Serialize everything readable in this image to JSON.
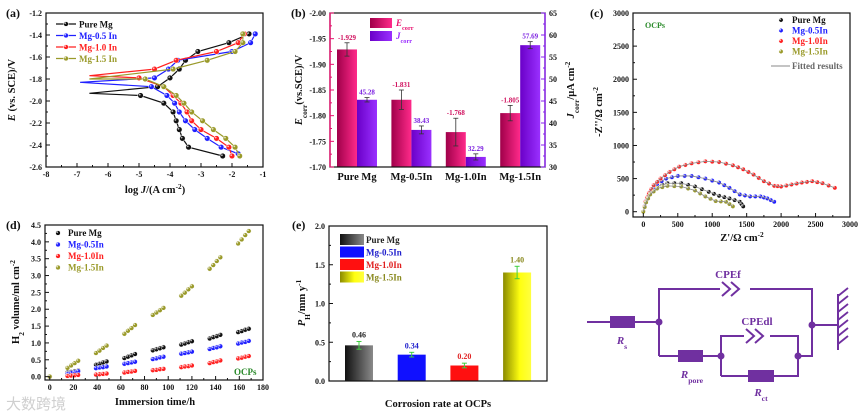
{
  "watermark": "大数跨境",
  "chart_data": [
    {
      "panel": "a",
      "label": "(a)",
      "type": "line",
      "xlabel": {
        "pre": "log ",
        "ital": "J",
        "post": "/(A cm",
        "sup": "-2",
        "end": ")"
      },
      "ylabel": {
        "ital": "E",
        "post": " (vs. SCE)/V"
      },
      "xlim": [
        -8,
        -1
      ],
      "ylim": [
        -2.6,
        -1.2
      ],
      "xticks": [
        "-8",
        "-7",
        "-6",
        "-5",
        "-4",
        "-3",
        "-2",
        "-1"
      ],
      "yticks": [
        "-1.2",
        "-1.4",
        "-1.6",
        "-1.8",
        "-2.0",
        "-2.2",
        "-2.4",
        "-2.6"
      ],
      "legend": "top-left",
      "series": [
        {
          "name": "Pure Mg",
          "color": "#111111",
          "points": [
            [
              -2.3,
              -2.5
            ],
            [
              -3.4,
              -2.42
            ],
            [
              -3.6,
              -2.34
            ],
            [
              -3.7,
              -2.26
            ],
            [
              -3.8,
              -2.18
            ],
            [
              -3.9,
              -2.1
            ],
            [
              -4.2,
              -2.02
            ],
            [
              -4.95,
              -1.95
            ],
            [
              -6.6,
              -1.93
            ],
            [
              -4.4,
              -1.87
            ],
            [
              -4.0,
              -1.79
            ],
            [
              -3.7,
              -1.71
            ],
            [
              -3.5,
              -1.63
            ],
            [
              -3.1,
              -1.55
            ],
            [
              -2.1,
              -1.47
            ],
            [
              -1.45,
              -1.39
            ]
          ]
        },
        {
          "name": "Mg-0.5 In",
          "color": "#2020ff",
          "points": [
            [
              -1.8,
              -2.48
            ],
            [
              -2.35,
              -2.42
            ],
            [
              -2.8,
              -2.34
            ],
            [
              -3.2,
              -2.26
            ],
            [
              -3.5,
              -2.18
            ],
            [
              -3.7,
              -2.1
            ],
            [
              -3.85,
              -2.02
            ],
            [
              -4.1,
              -1.95
            ],
            [
              -4.6,
              -1.87
            ],
            [
              -6.9,
              -1.83
            ],
            [
              -4.5,
              -1.79
            ],
            [
              -4.05,
              -1.71
            ],
            [
              -3.75,
              -1.63
            ],
            [
              -2.0,
              -1.55
            ],
            [
              -1.4,
              -1.47
            ],
            [
              -1.25,
              -1.39
            ]
          ]
        },
        {
          "name": "Mg-1.0 In",
          "color": "#ff2020",
          "points": [
            [
              -2.0,
              -2.5
            ],
            [
              -2.1,
              -2.42
            ],
            [
              -2.5,
              -2.34
            ],
            [
              -3.0,
              -2.26
            ],
            [
              -3.3,
              -2.18
            ],
            [
              -3.45,
              -2.1
            ],
            [
              -3.65,
              -2.02
            ],
            [
              -3.9,
              -1.95
            ],
            [
              -4.2,
              -1.87
            ],
            [
              -5.0,
              -1.79
            ],
            [
              -6.6,
              -1.77
            ],
            [
              -4.5,
              -1.71
            ],
            [
              -3.8,
              -1.63
            ],
            [
              -2.5,
              -1.55
            ],
            [
              -1.8,
              -1.47
            ],
            [
              -1.6,
              -1.39
            ]
          ]
        },
        {
          "name": "Mg-1.5 In",
          "color": "#9a9a2a",
          "points": [
            [
              -1.75,
              -2.5
            ],
            [
              -1.9,
              -2.42
            ],
            [
              -2.2,
              -2.34
            ],
            [
              -2.6,
              -2.26
            ],
            [
              -2.95,
              -2.18
            ],
            [
              -3.3,
              -2.1
            ],
            [
              -3.55,
              -2.02
            ],
            [
              -3.8,
              -1.95
            ],
            [
              -4.2,
              -1.87
            ],
            [
              -4.8,
              -1.8
            ],
            [
              -6.6,
              -1.8
            ],
            [
              -3.9,
              -1.71
            ],
            [
              -2.8,
              -1.63
            ],
            [
              -1.9,
              -1.55
            ],
            [
              -1.65,
              -1.47
            ],
            [
              -1.65,
              -1.39
            ]
          ]
        }
      ]
    },
    {
      "panel": "b",
      "label": "(b)",
      "type": "bar",
      "categories": [
        "Pure Mg",
        "Mg-0.5In",
        "Mg-1.0In",
        "Mg-1.5In"
      ],
      "ylabel_left": {
        "ital": "E",
        "sub": "corr",
        "post": "(vs.SCE)/V"
      },
      "ylabel_right": {
        "ital": "J",
        "sub": "corr",
        "post": "/μA cm",
        "sup": "-2"
      },
      "ylim_left": [
        -1.7,
        -2.0
      ],
      "ylim_right": [
        30,
        65
      ],
      "yticks_left": [
        "-2.00",
        "-1.95",
        "-1.90",
        "-1.85",
        "-1.80",
        "-1.75",
        "-1.70"
      ],
      "yticks_right": [
        "30",
        "35",
        "40",
        "45",
        "50",
        "55",
        "60",
        "65"
      ],
      "legend": "top-center",
      "series": [
        {
          "name": "E",
          "sub": "corr",
          "axis": "left",
          "color": "#e8106e",
          "color_dark": "#a0004a",
          "values": [
            -1.929,
            -1.831,
            -1.768,
            -1.805
          ],
          "errors": [
            0.013,
            0.019,
            0.027,
            0.015
          ],
          "labels": [
            "-1.929",
            "-1.831",
            "-1.768",
            "-1.805"
          ]
        },
        {
          "name": "J",
          "sub": "corr",
          "axis": "right",
          "color": "#9a2cff",
          "color_dark": "#6a00c8",
          "values": [
            45.28,
            38.43,
            32.29,
            57.69
          ],
          "errors": [
            0.5,
            0.9,
            0.7,
            0.8
          ],
          "labels": [
            "45.28",
            "38.43",
            "32.29",
            "57.69"
          ]
        }
      ]
    },
    {
      "panel": "c",
      "label": "(c)",
      "type": "scatter",
      "annotation": "OCPs",
      "xlabel": {
        "pre": "Z'/Ω cm",
        "sup": "-2"
      },
      "ylabel": {
        "pre": "-Z''/Ω cm",
        "sup": "-2"
      },
      "xlim": [
        -150,
        3000
      ],
      "ylim": [
        -80,
        3000
      ],
      "xticks": [
        "0",
        "500",
        "1000",
        "1500",
        "2000",
        "2500",
        "3000"
      ],
      "yticks": [
        "0",
        "500",
        "1000",
        "1500",
        "2000",
        "2500",
        "3000"
      ],
      "legend": "top-right",
      "fit_label": "Fitted results",
      "fit_color": "#888888",
      "series": [
        {
          "name": "Pure Mg",
          "color": "#111111",
          "points": [
            [
              0,
              0
            ],
            [
              40,
              150
            ],
            [
              100,
              280
            ],
            [
              200,
              380
            ],
            [
              350,
              430
            ],
            [
              550,
              430
            ],
            [
              750,
              380
            ],
            [
              950,
              300
            ],
            [
              1100,
              240
            ],
            [
              1250,
              200
            ],
            [
              1400,
              150
            ],
            [
              1450,
              80
            ]
          ]
        },
        {
          "name": "Mg-0.5In",
          "color": "#2020ff",
          "points": [
            [
              0,
              0
            ],
            [
              40,
              170
            ],
            [
              100,
              300
            ],
            [
              200,
              420
            ],
            [
              330,
              500
            ],
            [
              500,
              540
            ],
            [
              700,
              540
            ],
            [
              900,
              500
            ],
            [
              1100,
              440
            ],
            [
              1250,
              360
            ],
            [
              1400,
              260
            ],
            [
              1550,
              230
            ],
            [
              1700,
              230
            ],
            [
              1800,
              200
            ],
            [
              1900,
              150
            ]
          ]
        },
        {
          "name": "Mg-1.0In",
          "color": "#ff2020",
          "points": [
            [
              0,
              0
            ],
            [
              30,
              150
            ],
            [
              80,
              280
            ],
            [
              150,
              400
            ],
            [
              250,
              500
            ],
            [
              380,
              600
            ],
            [
              520,
              680
            ],
            [
              700,
              730
            ],
            [
              900,
              760
            ],
            [
              1100,
              750
            ],
            [
              1300,
              700
            ],
            [
              1450,
              640
            ],
            [
              1600,
              560
            ],
            [
              1750,
              460
            ],
            [
              1900,
              390
            ],
            [
              2000,
              380
            ],
            [
              2150,
              410
            ],
            [
              2300,
              440
            ],
            [
              2450,
              460
            ],
            [
              2600,
              430
            ],
            [
              2780,
              360
            ]
          ]
        },
        {
          "name": "Mg-1.5In",
          "color": "#9a9a2a",
          "points": [
            [
              0,
              0
            ],
            [
              40,
              140
            ],
            [
              100,
              260
            ],
            [
              200,
              350
            ],
            [
              350,
              390
            ],
            [
              550,
              380
            ],
            [
              750,
              320
            ],
            [
              900,
              230
            ],
            [
              1050,
              160
            ],
            [
              1200,
              150
            ],
            [
              1300,
              80
            ]
          ]
        }
      ]
    },
    {
      "panel": "d",
      "label": "(d)",
      "type": "scatter",
      "annotation": "OCPs",
      "xlabel": {
        "pre": "Immersion time/h"
      },
      "ylabel": {
        "pre": "H",
        "sub": "2",
        "post": " volume/ml cm",
        "sup": "-2"
      },
      "xlim": [
        -4,
        180
      ],
      "ylim": [
        -0.1,
        4.5
      ],
      "xticks": [
        "0",
        "20",
        "40",
        "60",
        "80",
        "100",
        "120",
        "140",
        "160",
        "180"
      ],
      "yticks": [
        "0.0",
        "0.5",
        "1.0",
        "1.5",
        "2.0",
        "2.5",
        "3.0",
        "3.5",
        "4.0",
        "4.5"
      ],
      "legend": "top-left",
      "x": [
        0,
        15,
        18,
        21,
        24,
        39,
        42,
        45,
        48,
        63,
        66,
        69,
        72,
        87,
        90,
        93,
        96,
        111,
        114,
        117,
        120,
        135,
        138,
        141,
        144,
        159,
        162,
        165,
        168
      ],
      "series": [
        {
          "name": "Pure Mg",
          "color": "#111111",
          "values": [
            0,
            0.12,
            0.14,
            0.16,
            0.18,
            0.35,
            0.38,
            0.42,
            0.45,
            0.55,
            0.59,
            0.63,
            0.67,
            0.78,
            0.81,
            0.84,
            0.87,
            0.95,
            0.98,
            1.02,
            1.05,
            1.13,
            1.17,
            1.2,
            1.24,
            1.32,
            1.35,
            1.39,
            1.42
          ]
        },
        {
          "name": "Mg-0.5In",
          "color": "#2020ff",
          "values": [
            0,
            0.08,
            0.11,
            0.13,
            0.16,
            0.25,
            0.27,
            0.28,
            0.3,
            0.38,
            0.4,
            0.42,
            0.44,
            0.52,
            0.54,
            0.57,
            0.59,
            0.68,
            0.7,
            0.72,
            0.74,
            0.82,
            0.85,
            0.87,
            0.9,
            0.98,
            1.01,
            1.03,
            1.06
          ]
        },
        {
          "name": "Mg-1.0In",
          "color": "#ff2020",
          "values": [
            0,
            0.02,
            0.03,
            0.04,
            0.05,
            0.06,
            0.07,
            0.08,
            0.09,
            0.12,
            0.14,
            0.15,
            0.17,
            0.19,
            0.2,
            0.22,
            0.23,
            0.28,
            0.3,
            0.31,
            0.33,
            0.4,
            0.43,
            0.45,
            0.48,
            0.54,
            0.56,
            0.59,
            0.61
          ]
        },
        {
          "name": "Mg-1.5In",
          "color": "#9a9a2a",
          "values": [
            0,
            0.26,
            0.33,
            0.4,
            0.47,
            0.7,
            0.77,
            0.85,
            0.92,
            1.27,
            1.36,
            1.44,
            1.53,
            1.83,
            1.9,
            1.97,
            2.04,
            2.4,
            2.49,
            2.59,
            2.68,
            3.2,
            3.31,
            3.43,
            3.54,
            3.95,
            4.07,
            4.2,
            4.32
          ]
        }
      ]
    },
    {
      "panel": "e",
      "label": "(e)",
      "type": "bar",
      "xlabel": "Corrosion rate at OCPs",
      "ylabel": {
        "ital": "P",
        "sub": "H",
        "post": "/mm y",
        "sup": "-1"
      },
      "ylim": [
        0,
        2.0
      ],
      "yticks": [
        "0.0",
        "0.5",
        "1.0",
        "1.5",
        "2.0"
      ],
      "legend": "top-left",
      "categories": [
        "Pure Mg",
        "Mg-0.5In",
        "Mg-1.0In",
        "Mg-1.5In"
      ],
      "values": [
        0.46,
        0.34,
        0.2,
        1.4
      ],
      "errors": [
        0.05,
        0.03,
        0.03,
        0.08
      ],
      "labels": [
        "0.46",
        "0.34",
        "0.20",
        "1.40"
      ],
      "colors": [
        "#111111",
        "#1010ff",
        "#ff1010",
        "#9a9a10"
      ],
      "colors_light": [
        "#8a8a8a",
        "#1010ff",
        "#ff1010",
        "#ffff20"
      ],
      "label_colors": [
        "#222222",
        "#2020cc",
        "#e02020",
        "#8a8a20"
      ],
      "error_color": "#40d040"
    }
  ],
  "circuit": {
    "color": "#7030a0",
    "elements": {
      "rs": {
        "main": "R",
        "sub": "s"
      },
      "rpore": {
        "main": "R",
        "sub": "pore"
      },
      "rct": {
        "main": "R",
        "sub": "ct"
      },
      "cpef": "CPEf",
      "cpedl": "CPEdl"
    }
  }
}
